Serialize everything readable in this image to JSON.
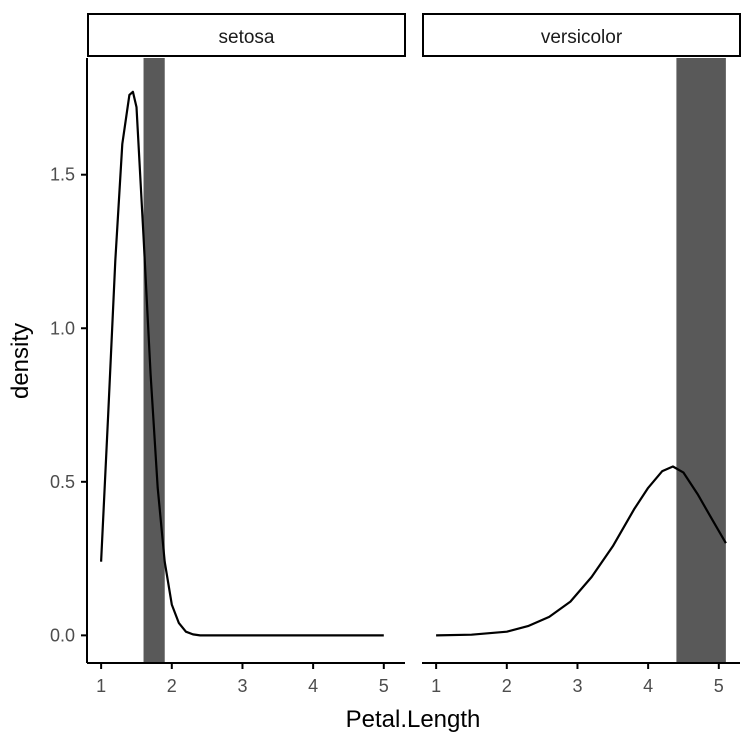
{
  "chart_data": {
    "type": "area",
    "xlabel": "Petal.Length",
    "ylabel": "density",
    "xlim": [
      0.8,
      5.3
    ],
    "ylim": [
      -0.09,
      1.88
    ],
    "x_ticks": [
      "1",
      "2",
      "3",
      "4",
      "5"
    ],
    "y_ticks": [
      "0.0",
      "0.5",
      "1.0",
      "1.5"
    ],
    "y_tick_values": [
      0.0,
      0.5,
      1.0,
      1.5
    ],
    "x_tick_values": [
      1,
      2,
      3,
      4,
      5
    ],
    "grid": false,
    "panels": [
      {
        "name": "setosa",
        "shaded_band": [
          1.6,
          1.9
        ],
        "curve": {
          "x": [
            1.0,
            1.1,
            1.2,
            1.3,
            1.4,
            1.45,
            1.5,
            1.6,
            1.7,
            1.8,
            1.9,
            2.0,
            2.1,
            2.2,
            2.3,
            2.4,
            3.0,
            4.0,
            5.0
          ],
          "y": [
            0.24,
            0.72,
            1.22,
            1.6,
            1.76,
            1.77,
            1.72,
            1.3,
            0.85,
            0.48,
            0.24,
            0.1,
            0.04,
            0.012,
            0.003,
            0.0,
            0.0,
            0.0,
            0.0
          ]
        }
      },
      {
        "name": "versicolor",
        "shaded_band": [
          4.4,
          5.1
        ],
        "curve": {
          "x": [
            1.0,
            1.5,
            2.0,
            2.3,
            2.6,
            2.9,
            3.2,
            3.5,
            3.8,
            4.0,
            4.2,
            4.35,
            4.5,
            4.7,
            4.9,
            5.1
          ],
          "y": [
            0.0,
            0.002,
            0.012,
            0.03,
            0.06,
            0.11,
            0.19,
            0.29,
            0.41,
            0.48,
            0.535,
            0.55,
            0.53,
            0.46,
            0.38,
            0.3
          ]
        }
      }
    ]
  },
  "colors": {
    "curve": "#000000",
    "band": "#595959",
    "axis": "#000000",
    "strip_fill": "#ffffff",
    "tick_text": "#4d4d4d"
  }
}
